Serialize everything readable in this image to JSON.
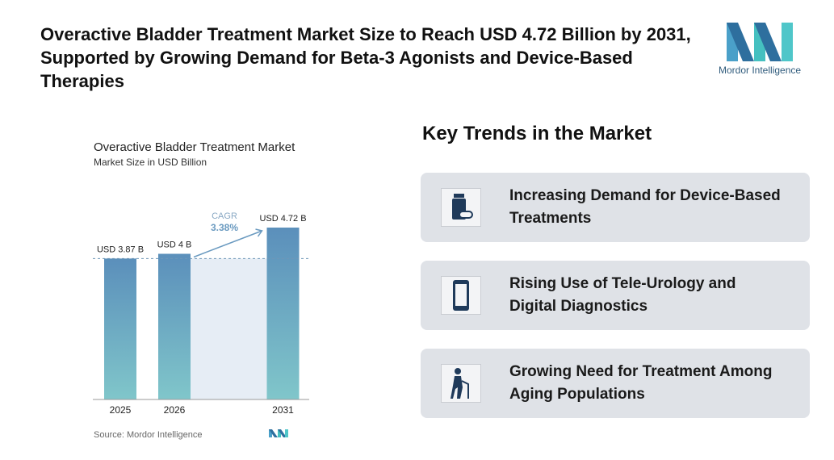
{
  "header": {
    "title": "Overactive Bladder Treatment Market Size to Reach USD 4.72 Billion by 2031, Supported by Growing Demand for Beta-3 Agonists and Device-Based Therapies",
    "logo_text": "Mordor Intelligence"
  },
  "chart_data": {
    "type": "bar",
    "title": "Overactive Bladder Treatment Market",
    "subtitle": "Market Size in USD Billion",
    "categories": [
      "2025",
      "2026",
      "2031"
    ],
    "values": [
      3.87,
      4,
      4.72
    ],
    "value_labels": [
      "USD 3.87 B",
      "USD 4 B",
      "USD 4.72 B"
    ],
    "color": "#5b8fbb",
    "annotation_label": "CAGR",
    "annotation_value": "3.38%",
    "source": "Source: Mordor Intelligence"
  },
  "trends": {
    "title": "Key Trends in the Market",
    "items": [
      "Increasing Demand for Device-Based Treatments",
      "Rising Use of Tele-Urology and Digital Diagnostics",
      "Growing Need for Treatment Among Aging Populations"
    ]
  }
}
